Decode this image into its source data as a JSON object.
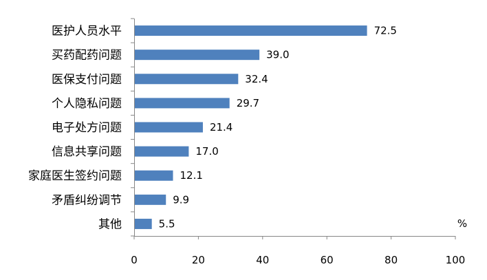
{
  "chart_data": {
    "type": "bar",
    "orientation": "horizontal",
    "categories": [
      "医护人员水平",
      "买药配药问题",
      "医保支付问题",
      "个人隐私问题",
      "电子处方问题",
      "信息共享问题",
      "家庭医生签约问题",
      "矛盾纠纷调节",
      "其他"
    ],
    "values": [
      72.5,
      39.0,
      32.4,
      29.7,
      21.4,
      17.0,
      12.1,
      9.9,
      5.5
    ],
    "value_labels": [
      "72.5",
      "39.0",
      "32.4",
      "29.7",
      "21.4",
      "17.0",
      "12.1",
      "9.9",
      "5.5"
    ],
    "xlim": [
      0,
      100
    ],
    "xticks": [
      "0",
      "20",
      "40",
      "60",
      "80",
      "100"
    ],
    "unit": "%",
    "bar_color": "#4f81bd",
    "grid": false,
    "legend": "none"
  }
}
